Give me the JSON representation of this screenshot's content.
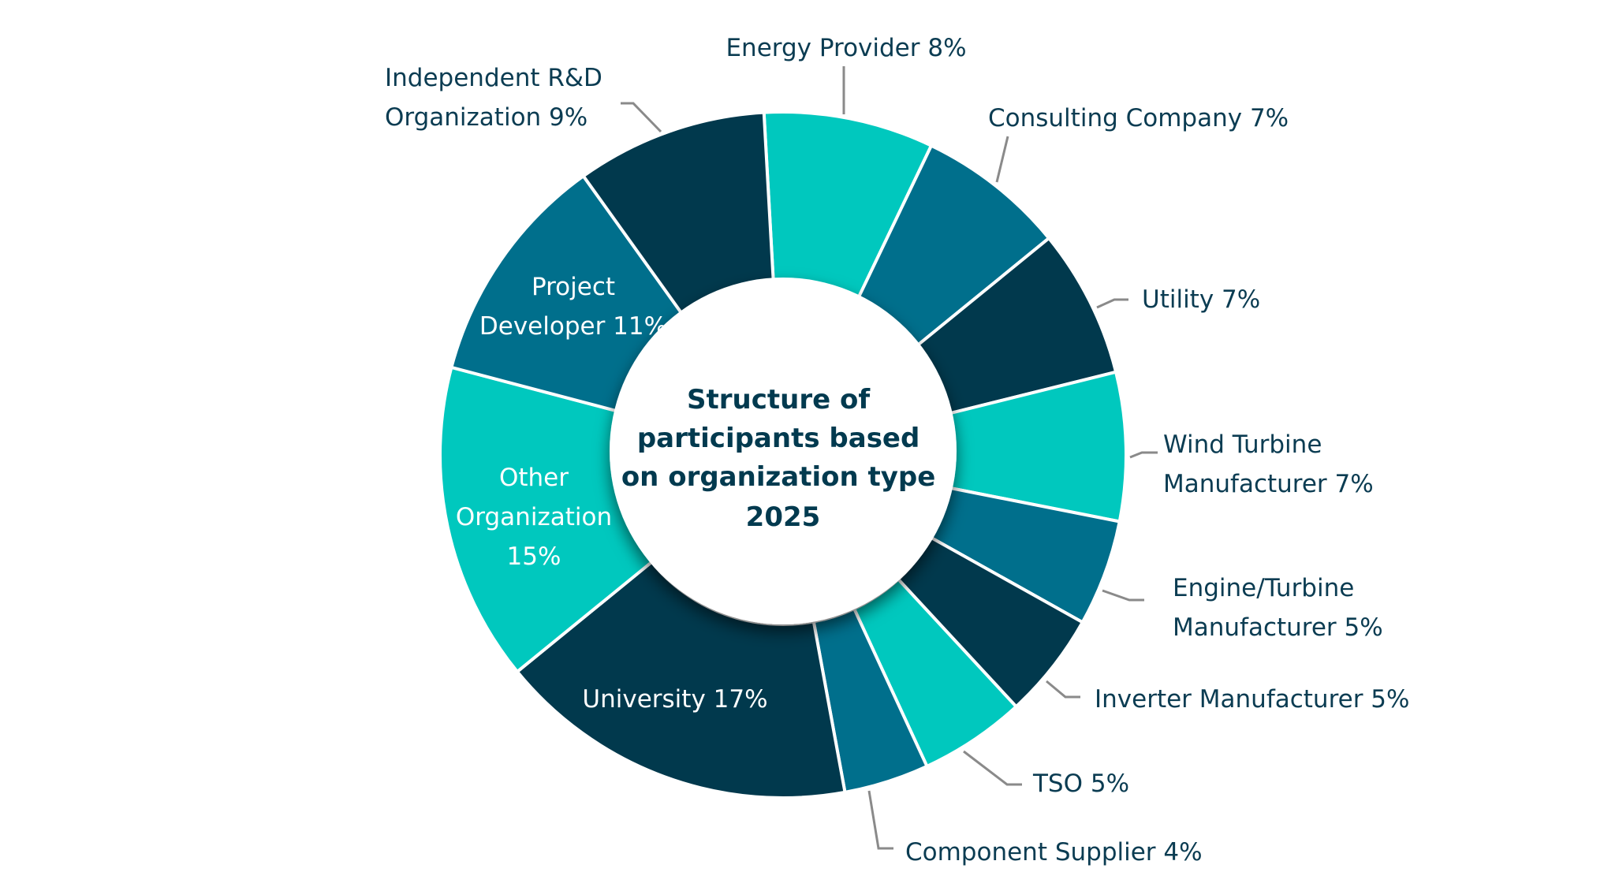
{
  "chart_data": {
    "type": "pie",
    "subtype": "donut",
    "title": [
      "Structure of",
      "participants based",
      "on organization type",
      "2025"
    ],
    "start_angle_deg": -3.2,
    "direction": "clockwise",
    "unit": "%",
    "colors": {
      "teal": "#00c8be",
      "mid": "#006f8c",
      "dark": "#01394d",
      "label_text": "#0b3c52",
      "inside_label_text": "#ffffff",
      "leader": "#8a8a8a"
    },
    "slices": [
      {
        "name": "Energy Provider",
        "value": 8,
        "color": "teal",
        "label_lines": [
          "Energy Provider 8%"
        ],
        "label_position": "outside"
      },
      {
        "name": "Consulting Company",
        "value": 7,
        "color": "mid",
        "label_lines": [
          "Consulting Company 7%"
        ],
        "label_position": "outside"
      },
      {
        "name": "Utility",
        "value": 7,
        "color": "dark",
        "label_lines": [
          "Utility 7%"
        ],
        "label_position": "outside"
      },
      {
        "name": "Wind Turbine Manufacturer",
        "value": 7,
        "color": "teal",
        "label_lines": [
          "Wind Turbine",
          "Manufacturer 7%"
        ],
        "label_position": "outside"
      },
      {
        "name": "Engine/Turbine Manufacturer",
        "value": 5,
        "color": "mid",
        "label_lines": [
          "Engine/Turbine",
          "Manufacturer 5%"
        ],
        "label_position": "outside"
      },
      {
        "name": "Inverter Manufacturer",
        "value": 5,
        "color": "dark",
        "label_lines": [
          "Inverter Manufacturer  5%"
        ],
        "label_position": "outside"
      },
      {
        "name": "TSO",
        "value": 5,
        "color": "teal",
        "label_lines": [
          "TSO 5%"
        ],
        "label_position": "outside"
      },
      {
        "name": "Component Supplier",
        "value": 4,
        "color": "mid",
        "label_lines": [
          "Component Supplier 4%"
        ],
        "label_position": "outside"
      },
      {
        "name": "University",
        "value": 17,
        "color": "dark",
        "label_lines": [
          "University 17%"
        ],
        "label_position": "inside"
      },
      {
        "name": "Other Organization",
        "value": 15,
        "color": "teal",
        "label_lines": [
          "Other",
          "Organization",
          "15%"
        ],
        "label_position": "inside"
      },
      {
        "name": "Project Developer",
        "value": 11,
        "color": "mid",
        "label_lines": [
          "Project",
          "Developer 11%"
        ],
        "label_position": "inside"
      },
      {
        "name": "Independent R&D Organization",
        "value": 9,
        "color": "dark",
        "label_lines": [
          "Independent R&D",
          "Organization 9%"
        ],
        "label_position": "outside"
      }
    ],
    "legend": "none"
  }
}
